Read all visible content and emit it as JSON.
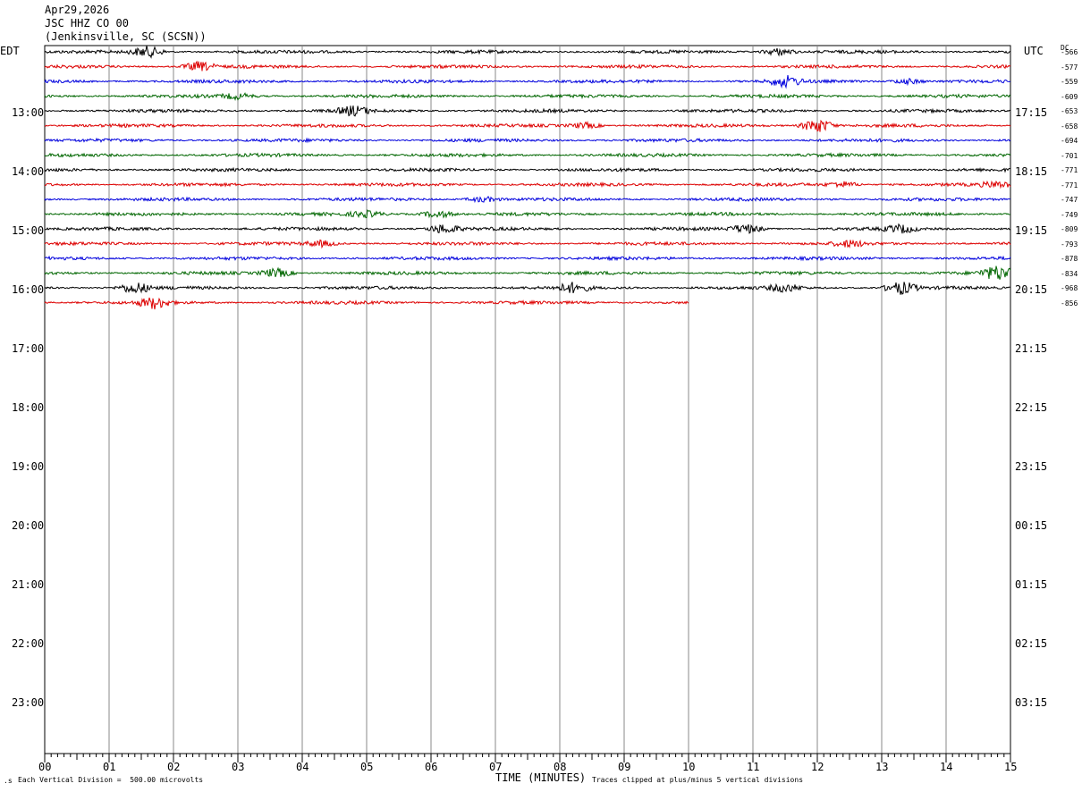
{
  "header": {
    "date": "Apr29,2026",
    "station": "JSC HHZ CO 00",
    "location": "(Jenkinsville, SC (SCSN))"
  },
  "chart_data": {
    "type": "line",
    "left_axis_title": "EDT",
    "right_axis_title": "UTC",
    "dc_title": "DC",
    "xlabel": "TIME (MINUTES)",
    "x_ticks": [
      "00",
      "01",
      "02",
      "03",
      "04",
      "05",
      "06",
      "07",
      "08",
      "09",
      "10",
      "11",
      "12",
      "13",
      "14",
      "15"
    ],
    "xlim": [
      0,
      15
    ],
    "left_hour_labels": [
      "13:00",
      "14:00",
      "15:00",
      "16:00",
      "17:00",
      "18:00",
      "19:00",
      "20:00",
      "21:00",
      "22:00",
      "23:00"
    ],
    "right_hour_labels": [
      "17:15",
      "18:15",
      "19:15",
      "20:15",
      "21:15",
      "22:15",
      "23:15",
      "00:15",
      "01:15",
      "02:15",
      "03:15"
    ],
    "trace_colors": [
      "#000000",
      "#dd0000",
      "#0000dd",
      "#006600"
    ],
    "traces": [
      {
        "dc": "-566",
        "end_minute": 15
      },
      {
        "dc": "-577",
        "end_minute": 15
      },
      {
        "dc": "-559",
        "end_minute": 15
      },
      {
        "dc": "-609",
        "end_minute": 15
      },
      {
        "dc": "-653",
        "end_minute": 15
      },
      {
        "dc": "-658",
        "end_minute": 15
      },
      {
        "dc": "-694",
        "end_minute": 15
      },
      {
        "dc": "-701",
        "end_minute": 15
      },
      {
        "dc": "-771",
        "end_minute": 15
      },
      {
        "dc": "-771",
        "end_minute": 15
      },
      {
        "dc": "-747",
        "end_minute": 15
      },
      {
        "dc": "-749",
        "end_minute": 15
      },
      {
        "dc": "-809",
        "end_minute": 15
      },
      {
        "dc": "-793",
        "end_minute": 15
      },
      {
        "dc": "-878",
        "end_minute": 15
      },
      {
        "dc": "-834",
        "end_minute": 15
      },
      {
        "dc": "-968",
        "end_minute": 15
      },
      {
        "dc": "-856",
        "end_minute": 10
      }
    ],
    "footer_left": "Each Vertical Division =  500.00 microvolts",
    "footer_right": "Traces clipped at plus/minus 5 vertical divisions"
  }
}
